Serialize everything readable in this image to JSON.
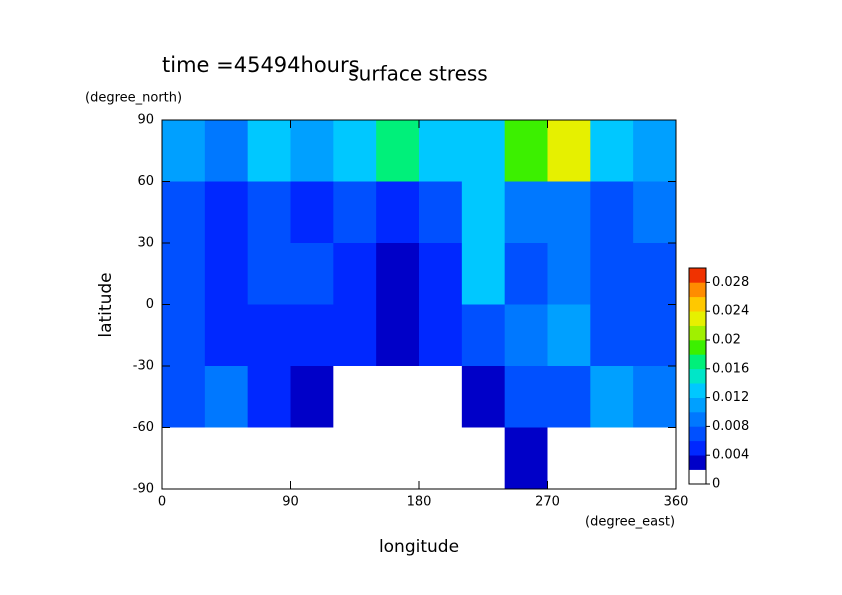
{
  "chart_data": {
    "type": "heatmap",
    "title": "surface stress",
    "subtitle": "time =45494hours",
    "x_label": "longitude",
    "x_unit": "(degree_east)",
    "y_label": "latitude",
    "y_unit": "(degree_north)",
    "x": [
      15,
      45,
      75,
      105,
      135,
      165,
      195,
      225,
      255,
      285,
      315,
      345
    ],
    "y": [
      75,
      45,
      15,
      -15,
      -45,
      -75
    ],
    "z": [
      [
        0.01,
        0.008,
        0.012,
        0.01,
        0.012,
        0.016,
        0.012,
        0.012,
        0.018,
        0.022,
        0.012,
        0.01
      ],
      [
        0.006,
        0.004,
        0.006,
        0.004,
        0.006,
        0.004,
        0.006,
        0.012,
        0.008,
        0.008,
        0.006,
        0.008
      ],
      [
        0.006,
        0.004,
        0.006,
        0.006,
        0.004,
        0.002,
        0.004,
        0.012,
        0.006,
        0.008,
        0.006,
        0.006
      ],
      [
        0.006,
        0.004,
        0.004,
        0.004,
        0.004,
        0.002,
        0.004,
        0.006,
        0.008,
        0.01,
        0.006,
        0.006
      ],
      [
        0.006,
        0.008,
        0.004,
        0.002,
        0,
        0,
        0,
        0.002,
        0.006,
        0.006,
        0.01,
        0.008
      ],
      [
        0,
        0,
        0,
        0,
        0,
        0,
        0,
        0,
        0.002,
        0,
        0,
        0
      ]
    ],
    "xlim": [
      0,
      360
    ],
    "xticks": [
      0,
      90,
      180,
      270,
      360
    ],
    "ylim": [
      -90,
      90
    ],
    "yticks": [
      -90,
      -60,
      -30,
      0,
      30,
      60,
      90
    ],
    "colorbar_lim": [
      0,
      0.03
    ],
    "colorbar_ticks": [
      0,
      0.004,
      0.008,
      0.012,
      0.016,
      0.02,
      0.024,
      0.028
    ],
    "colors": [
      "#ffffff",
      "#0000c8",
      "#0028ff",
      "#0050ff",
      "#0078ff",
      "#00a0ff",
      "#00c8ff",
      "#00e6c8",
      "#00f07a",
      "#3cf000",
      "#a0f000",
      "#e6f000",
      "#ffc800",
      "#ff8c00",
      "#f03200"
    ]
  }
}
